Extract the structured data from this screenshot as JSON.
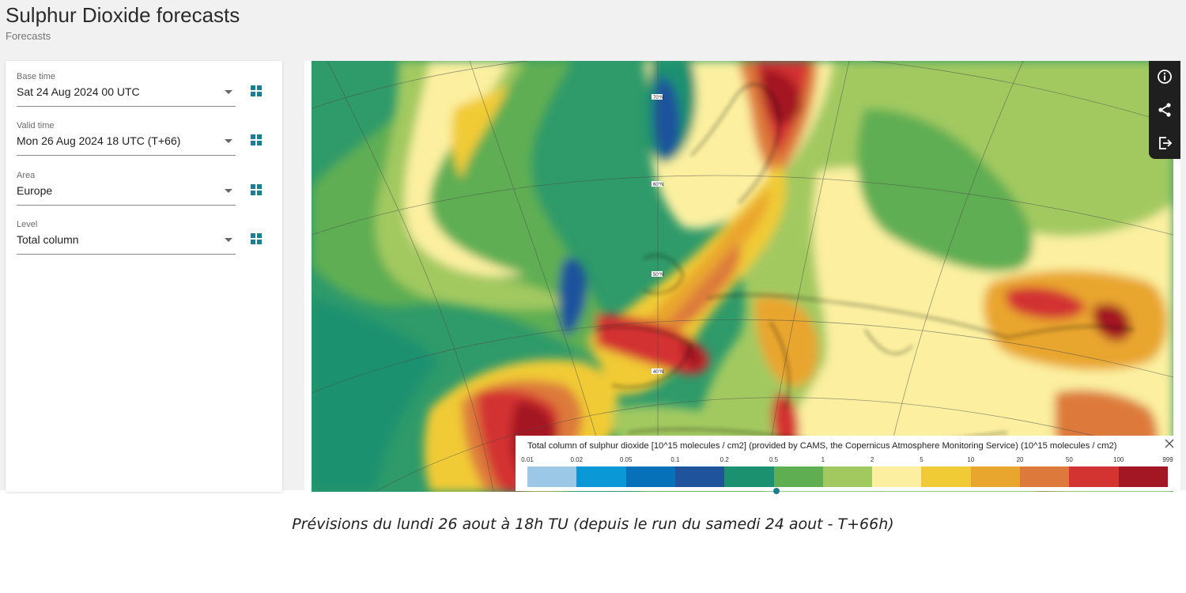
{
  "page": {
    "title": "Sulphur Dioxide forecasts",
    "subtitle": "Forecasts"
  },
  "controls": [
    {
      "label": "Base time",
      "value": "Sat 24 Aug 2024 00 UTC"
    },
    {
      "label": "Valid time",
      "value": "Mon 26 Aug 2024 18 UTC (T+66)"
    },
    {
      "label": "Area",
      "value": "Europe"
    },
    {
      "label": "Level",
      "value": "Total column"
    }
  ],
  "icons": {
    "selector": "grid-icon",
    "info": "info-icon",
    "share": "share-icon",
    "export": "export-icon",
    "close": "close-icon",
    "dropdown": "chevron-down-icon"
  },
  "map": {
    "lat_labels": [
      "70°N",
      "60°N",
      "50°N",
      "40°N"
    ]
  },
  "legend": {
    "title": "Total column of sulphur dioxide [10^15 molecules / cm2] (provided by CAMS, the Copernicus Atmosphere Monitoring Service) (10^15 molecules / cm2)",
    "ticks": [
      "0.01",
      "0.02",
      "0.05",
      "0.1",
      "0.2",
      "0.5",
      "1",
      "2",
      "5",
      "10",
      "20",
      "50",
      "100",
      "999"
    ],
    "colors": [
      "#9cc8e8",
      "#0b98d6",
      "#0670b8",
      "#1f539c",
      "#1b9170",
      "#5fae52",
      "#a2c960",
      "#fcf0a0",
      "#f1cb35",
      "#e9a62f",
      "#dd7a3b",
      "#d33331",
      "#a31724"
    ]
  },
  "caption": "Prévisions du lundi 26 aout à 18h TU (depuis le run du samedi 24 aout - T+66h)"
}
